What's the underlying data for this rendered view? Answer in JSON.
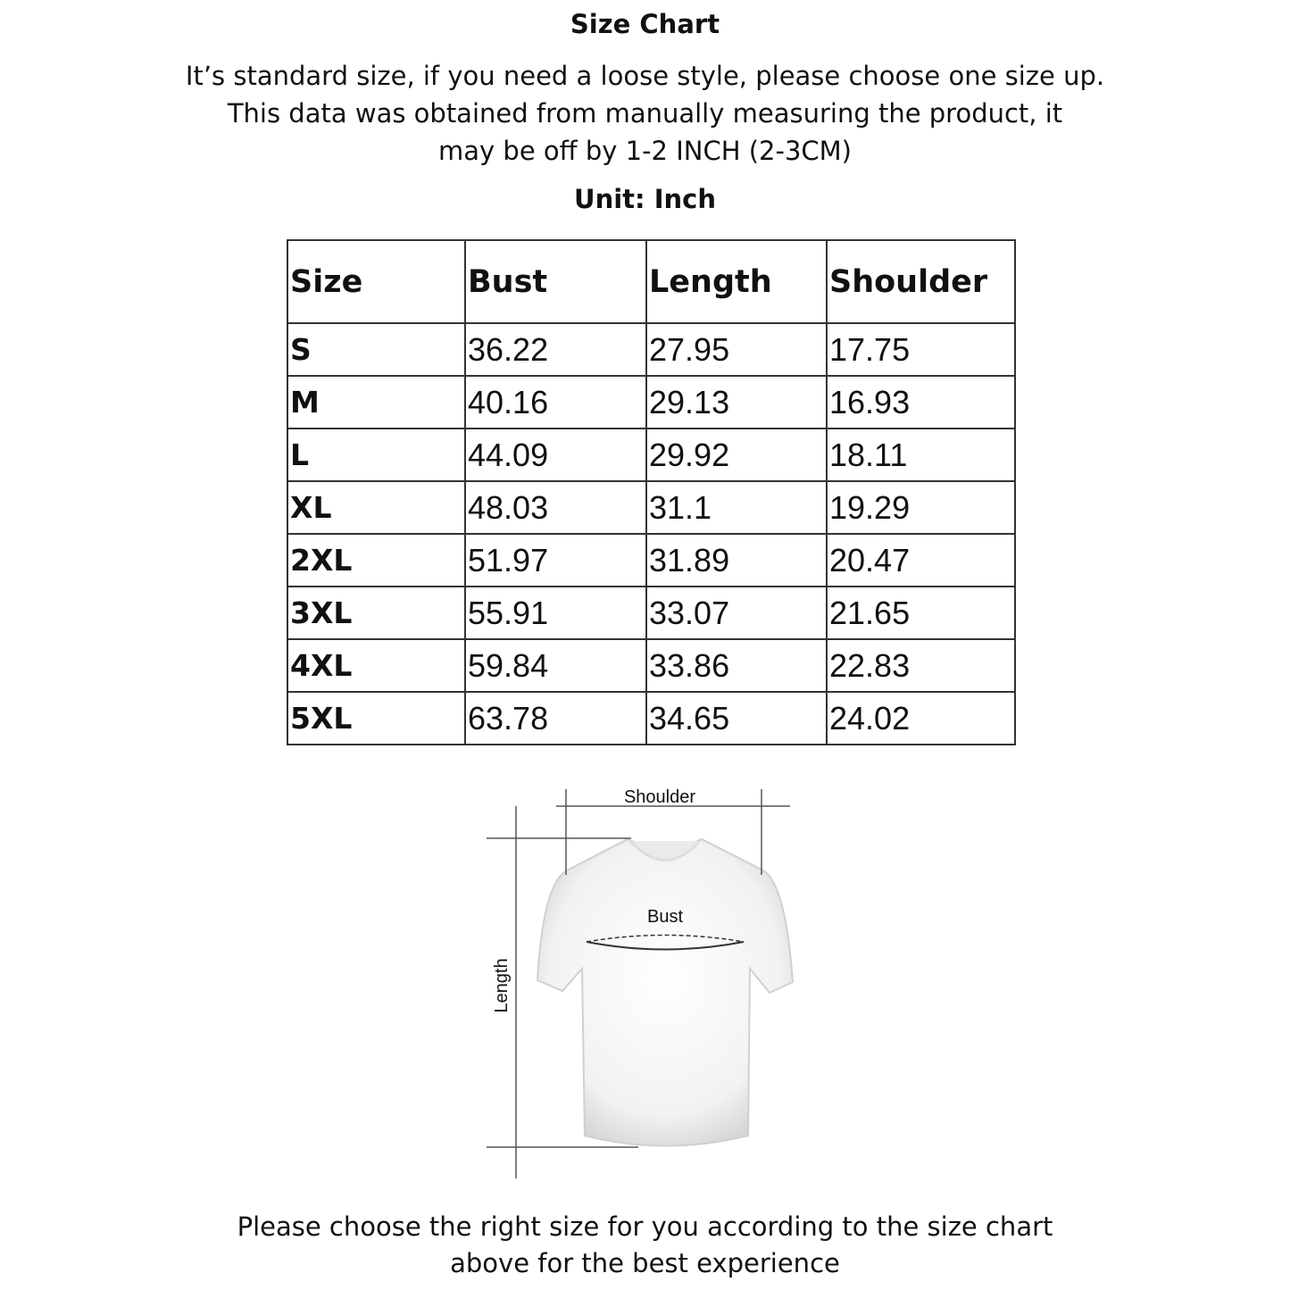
{
  "title": "Size Chart",
  "intro": [
    "It’s standard size, if you need a loose style, please choose one size up.",
    "This data was obtained from manually measuring the product, it",
    "may be off by 1-2 INCH (2-3CM)"
  ],
  "unit_label": "Unit: Inch",
  "table": {
    "headers": [
      "Size",
      "Bust",
      "Length",
      "Shoulder"
    ],
    "rows": [
      [
        "S",
        "36.22",
        "27.95",
        "17.75"
      ],
      [
        "M",
        "40.16",
        "29.13",
        "16.93"
      ],
      [
        "L",
        "44.09",
        "29.92",
        "18.11"
      ],
      [
        "XL",
        "48.03",
        "31.1",
        "19.29"
      ],
      [
        "2XL",
        "51.97",
        "31.89",
        "20.47"
      ],
      [
        "3XL",
        "55.91",
        "33.07",
        "21.65"
      ],
      [
        "4XL",
        "59.84",
        "33.86",
        "22.83"
      ],
      [
        "5XL",
        "63.78",
        "34.65",
        "24.02"
      ]
    ]
  },
  "diagram": {
    "shoulder_label": "Shoulder",
    "bust_label": "Bust",
    "length_label": "Length",
    "icon": "t-shirt-icon"
  },
  "footer": [
    "Please choose the right size for you according to the size chart",
    "above for the best experience"
  ]
}
